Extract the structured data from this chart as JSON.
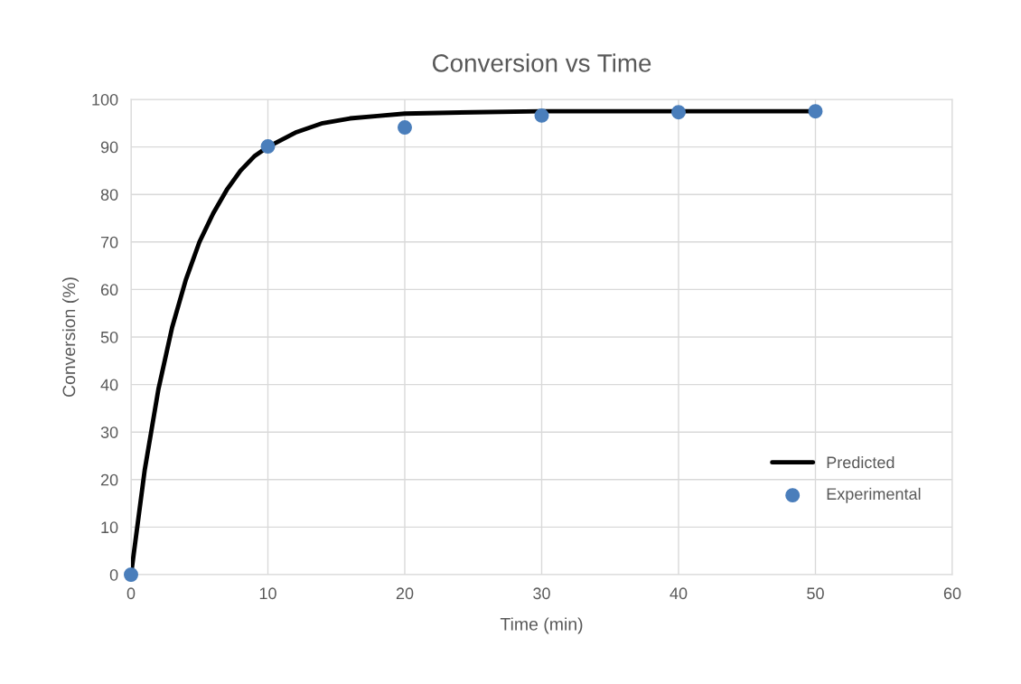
{
  "chart_data": {
    "type": "line",
    "title": "Conversion vs Time",
    "xlabel": "Time (min)",
    "ylabel": "Conversion (%)",
    "xlim": [
      0,
      60
    ],
    "xticks": [
      0,
      10,
      20,
      30,
      40,
      50,
      60
    ],
    "ylim": [
      0,
      100
    ],
    "yticks": [
      0,
      10,
      20,
      30,
      40,
      50,
      60,
      70,
      80,
      90,
      100
    ],
    "grid": true,
    "legend": "bottom right",
    "series": [
      {
        "name": "Predicted",
        "color": "#000000",
        "marker": "none",
        "line_style": "solid",
        "x": [
          0,
          1,
          2,
          3,
          4,
          5,
          6,
          7,
          8,
          9,
          10,
          12,
          14,
          16,
          18,
          20,
          25,
          30,
          40,
          50
        ],
        "values": [
          0,
          22,
          39,
          52,
          62,
          70,
          76,
          81,
          85,
          88,
          90,
          93,
          95,
          96,
          96.5,
          97,
          97.3,
          97.5,
          97.5,
          97.5
        ]
      },
      {
        "name": "Experimental",
        "type": "scatter",
        "color": "#4a7ebb",
        "marker": "circle",
        "x": [
          0,
          10,
          20,
          30,
          40,
          50
        ],
        "values": [
          0,
          90.1,
          94.1,
          96.6,
          97.3,
          97.5
        ]
      }
    ]
  }
}
